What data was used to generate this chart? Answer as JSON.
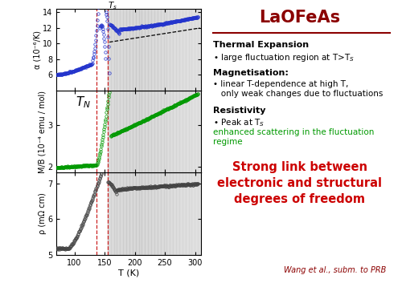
{
  "title": "LaOFeAs",
  "title_color": "#8B0000",
  "divider_color": "#8B0000",
  "T_N": 137,
  "T_S": 155,
  "T_range": [
    70,
    310
  ],
  "panel1": {
    "ylabel": "α (10⁻⁶/K)",
    "ylim": [
      4,
      14.5
    ],
    "yticks": [
      6,
      8,
      10,
      12,
      14
    ],
    "color": "#2233cc",
    "marker": "o",
    "markersize": 2.5
  },
  "panel2": {
    "ylabel": "M/B (10⁻⁴ emu / mol)",
    "ylim": [
      1.85,
      3.85
    ],
    "yticks": [
      2,
      3
    ],
    "color": "#009900",
    "marker": "o",
    "markersize": 2.5
  },
  "panel3": {
    "ylabel": "ρ (mΩ cm)",
    "ylim": [
      5.0,
      7.3
    ],
    "yticks": [
      5,
      6,
      7
    ],
    "color": "#444444",
    "marker": "o",
    "markersize": 2.5
  },
  "xlabel": "T (K)",
  "xticks": [
    100,
    150,
    200,
    250,
    300
  ],
  "right_panel": {
    "thermal_title": "Thermal Expansion",
    "thermal_bullet": "large fluctuation region at T>T$_S$",
    "mag_title": "Magnetisation:",
    "mag_bullet1": "linear T-dependence at high T,",
    "mag_bullet2": "only weak changes due to fluctuations",
    "res_title": "Resistivity",
    "res_bullet1": "Peak at T$_S$",
    "res_bullet2": "enhanced scattering in the fluctuation",
    "res_bullet3": "regime",
    "res_color": "#009900",
    "strong_text": "Strong link between\nelectronic and structural\ndegrees of freedom",
    "strong_color": "#cc0000",
    "citation": "Wang et al., subm. to PRB",
    "citation_color": "#8B0000"
  }
}
